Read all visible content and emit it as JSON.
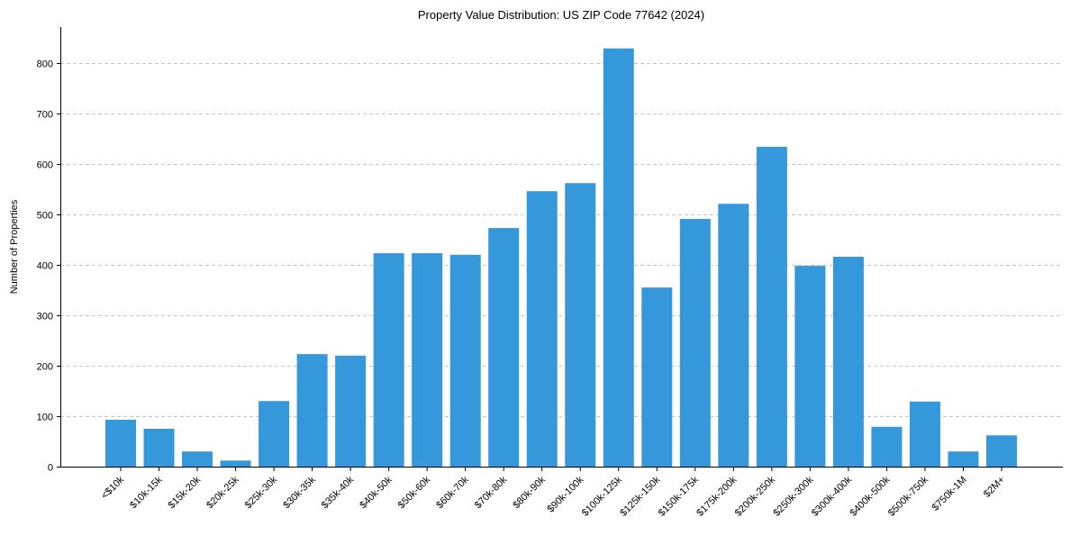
{
  "chart_data": {
    "type": "bar",
    "title": "Property Value Distribution: US ZIP Code 77642 (2024)",
    "xlabel": "",
    "ylabel": "Number of Properties",
    "ylim": [
      0,
      870
    ],
    "yticks": [
      0,
      100,
      200,
      300,
      400,
      500,
      600,
      700,
      800
    ],
    "grid": "y-dashed",
    "bar_color": "#3498db",
    "categories": [
      "<$10k",
      "$10k-15k",
      "$15k-20k",
      "$20k-25k",
      "$25k-30k",
      "$30k-35k",
      "$35k-40k",
      "$40k-50k",
      "$50k-60k",
      "$60k-70k",
      "$70k-80k",
      "$80k-90k",
      "$90k-100k",
      "$100k-125k",
      "$125k-150k",
      "$150k-175k",
      "$175k-200k",
      "$200k-250k",
      "$250k-300k",
      "$300k-400k",
      "$400k-500k",
      "$500k-750k",
      "$750k-1M",
      "$2M+"
    ],
    "values": [
      93,
      75,
      30,
      12,
      130,
      223,
      220,
      423,
      423,
      420,
      473,
      546,
      562,
      829,
      355,
      491,
      521,
      634,
      398,
      416,
      79,
      129,
      30,
      62
    ]
  }
}
